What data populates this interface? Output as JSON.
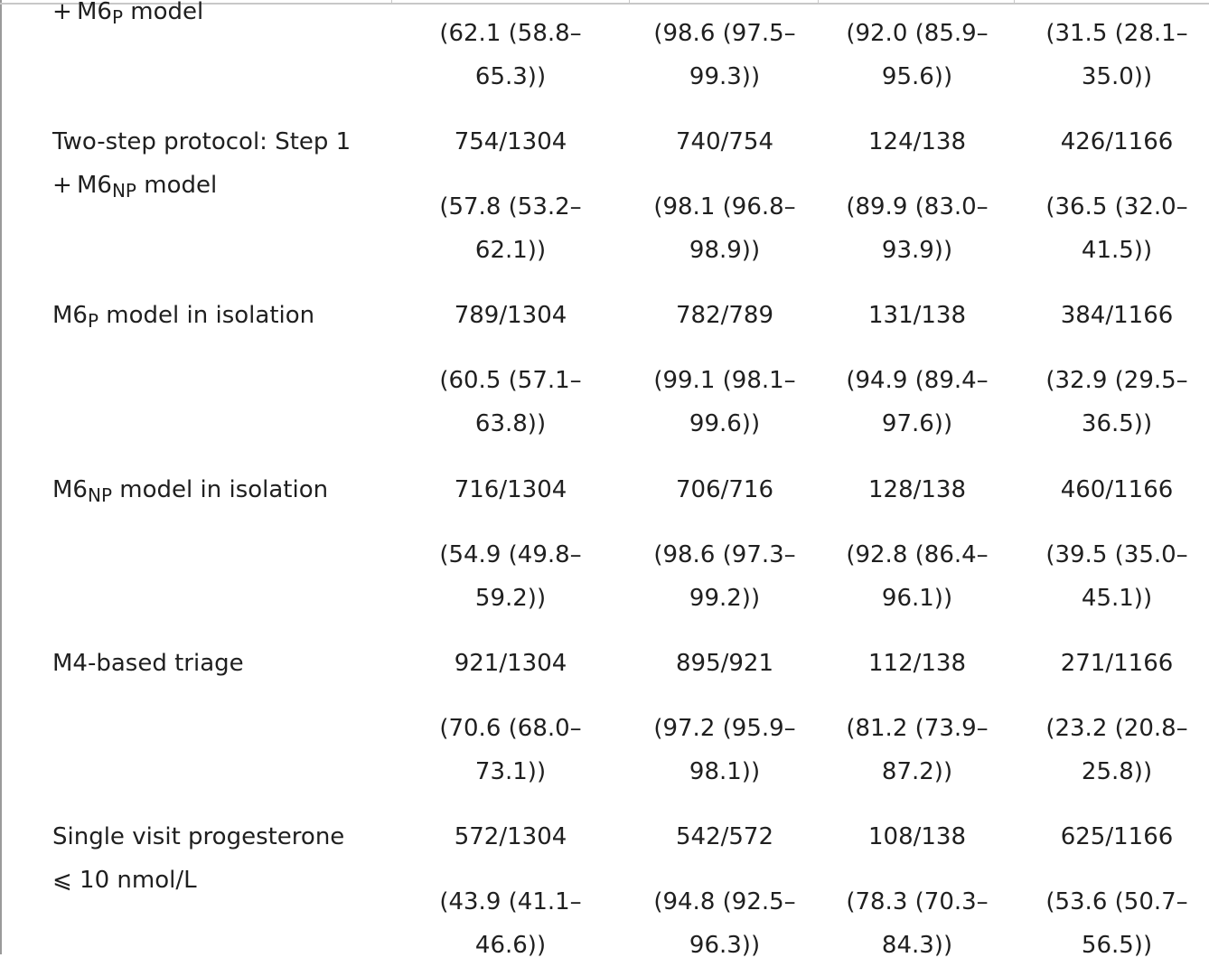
{
  "rows": [
    {
      "label_lines": [
        [
          "+ M6",
          "P",
          " model"
        ]
      ],
      "counts": [
        "",
        "",
        "",
        ""
      ],
      "ci": [
        [
          "(62.1 (58.8–",
          "65.3))"
        ],
        [
          "(98.6 (97.5–",
          "99.3))"
        ],
        [
          "(92.0 (85.9–",
          "95.6))"
        ],
        [
          "(31.5 (28.1–",
          "35.0))"
        ]
      ]
    },
    {
      "label_lines": [
        [
          "Two-step protocol: Step 1",
          "",
          ""
        ],
        [
          "+ M6",
          "NP",
          " model"
        ]
      ],
      "counts": [
        "754/1304",
        "740/754",
        "124/138",
        "426/1166"
      ],
      "ci": [
        [
          "(57.8 (53.2–",
          "62.1))"
        ],
        [
          "(98.1 (96.8–",
          "98.9))"
        ],
        [
          "(89.9 (83.0–",
          "93.9))"
        ],
        [
          "(36.5 (32.0–",
          "41.5))"
        ]
      ]
    },
    {
      "label_lines": [
        [
          "M6",
          "P",
          " model in isolation"
        ]
      ],
      "counts": [
        "789/1304",
        "782/789",
        "131/138",
        "384/1166"
      ],
      "ci": [
        [
          "(60.5 (57.1–",
          "63.8))"
        ],
        [
          "(99.1 (98.1–",
          "99.6))"
        ],
        [
          "(94.9 (89.4–",
          "97.6))"
        ],
        [
          "(32.9 (29.5–",
          "36.5))"
        ]
      ]
    },
    {
      "label_lines": [
        [
          "M6",
          "NP",
          " model in isolation"
        ]
      ],
      "counts": [
        "716/1304",
        "706/716",
        "128/138",
        "460/1166"
      ],
      "ci": [
        [
          "(54.9 (49.8–",
          "59.2))"
        ],
        [
          "(98.6 (97.3–",
          "99.2))"
        ],
        [
          "(92.8 (86.4–",
          "96.1))"
        ],
        [
          "(39.5 (35.0–",
          "45.1))"
        ]
      ]
    },
    {
      "label_lines": [
        [
          "M4-based triage",
          "",
          ""
        ]
      ],
      "counts": [
        "921/1304",
        "895/921",
        "112/138",
        "271/1166"
      ],
      "ci": [
        [
          "(70.6 (68.0–",
          "73.1))"
        ],
        [
          "(97.2 (95.9–",
          "98.1))"
        ],
        [
          "(81.2 (73.9–",
          "87.2))"
        ],
        [
          "(23.2 (20.8–",
          "25.8))"
        ]
      ]
    },
    {
      "label_lines": [
        [
          "Single visit progesterone",
          "",
          ""
        ],
        [
          "⩽ 10 nmol/L",
          "",
          ""
        ]
      ],
      "counts": [
        "572/1304",
        "542/572",
        "108/138",
        "625/1166"
      ],
      "ci": [
        [
          "(43.9 (41.1–",
          "46.6))"
        ],
        [
          "(94.8 (92.5–",
          "96.3))"
        ],
        [
          "(78.3 (70.3–",
          "84.3))"
        ],
        [
          "(53.6 (50.7–",
          "56.5))"
        ]
      ]
    }
  ]
}
